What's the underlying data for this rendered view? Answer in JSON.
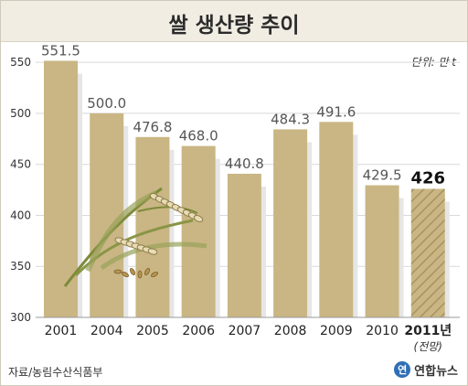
{
  "title": "쌀 생산량 추이",
  "unit_label": "단위: 만 t",
  "source": "자료/농림수산식품부",
  "logo": {
    "mark": "연",
    "text": "연합뉴스"
  },
  "colors": {
    "bar": "#c9b684",
    "bar_forecast": "#c9b684",
    "bar_shadow": "#e6e6e6",
    "grid": "#d9d9d9",
    "axis_text": "#333333"
  },
  "chart_data": {
    "type": "bar",
    "title": "쌀 생산량 추이",
    "categories": [
      "2001",
      "2004",
      "2005",
      "2006",
      "2007",
      "2008",
      "2009",
      "2010",
      "2011년"
    ],
    "category_sublabels": [
      "",
      "",
      "",
      "",
      "",
      "",
      "",
      "",
      "(전망)"
    ],
    "values": [
      551.5,
      500.0,
      476.8,
      468.0,
      440.8,
      484.3,
      491.6,
      429.5,
      426
    ],
    "value_labels": [
      "551.5",
      "500.0",
      "476.8",
      "468.0",
      "440.8",
      "484.3",
      "491.6",
      "429.5",
      "426"
    ],
    "forecast_index": 8,
    "ylim": [
      300,
      560
    ],
    "yticks": [
      300,
      350,
      400,
      450,
      500,
      550
    ],
    "grid": true,
    "xlabel": "",
    "ylabel": ""
  }
}
